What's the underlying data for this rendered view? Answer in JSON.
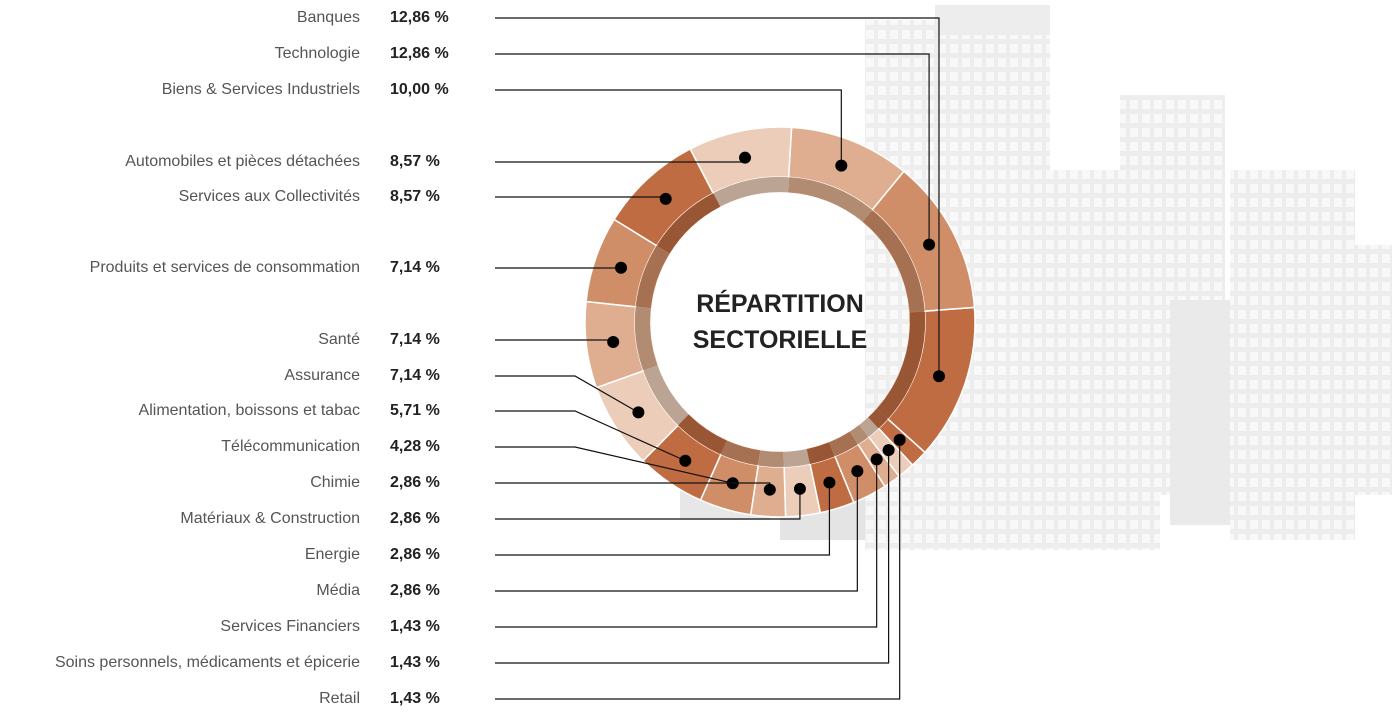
{
  "chart_data": {
    "type": "donut",
    "title": "RÉPARTITION SECTORIELLE",
    "categories": [
      "Banques",
      "Technologie",
      "Biens & Services Industriels",
      "Automobiles et pièces détachées",
      "Services aux Collectivités",
      "Produits et services de consommation",
      "Santé",
      "Assurance",
      "Alimentation, boissons et tabac",
      "Télécommunication",
      "Chimie",
      "Matériaux & Construction",
      "Energie",
      "Média",
      "Services Financiers",
      "Soins personnels, médicaments et épicerie",
      "Retail"
    ],
    "values": [
      12.86,
      12.86,
      10.0,
      8.57,
      8.57,
      7.14,
      7.14,
      7.14,
      5.71,
      4.28,
      2.86,
      2.86,
      2.86,
      2.86,
      1.43,
      1.43,
      1.43
    ],
    "value_labels": [
      "12,86 %",
      "12,86 %",
      "10,00 %",
      "8,57 %",
      "8,57 %",
      "7,14 %",
      "7,14 %",
      "7,14 %",
      "5,71 %",
      "4,28 %",
      "2,86 %",
      "2,86 %",
      "2,86 %",
      "2,86 %",
      "1,43 %",
      "1,43 %",
      "1,43 %"
    ],
    "colors": [
      "#c06c43",
      "#d08e68",
      "#dfae90",
      "#ebcdb9"
    ]
  }
}
